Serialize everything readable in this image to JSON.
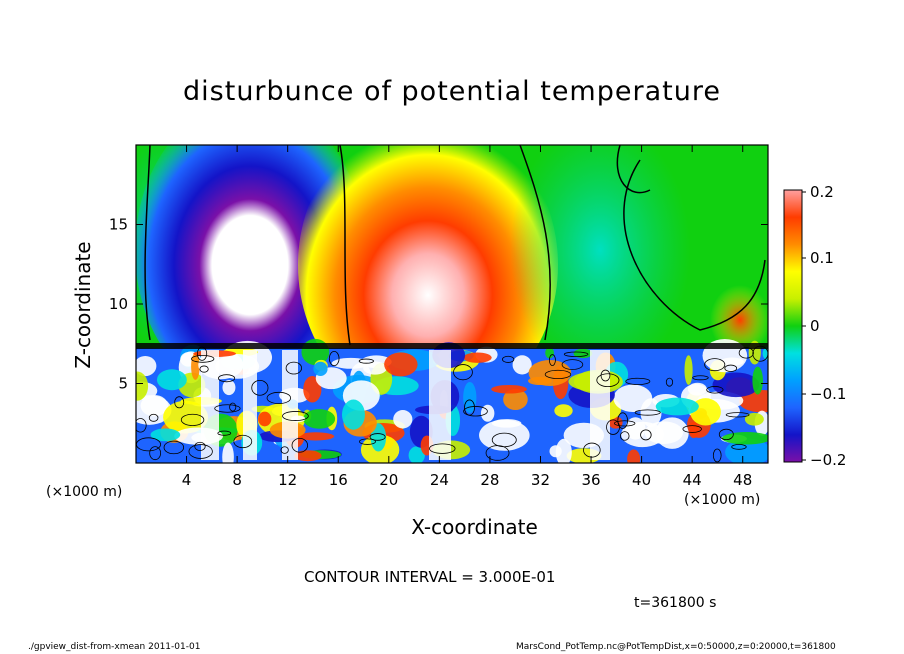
{
  "chart_data": {
    "type": "heatmap",
    "title": "disturbunce of potential temperature",
    "xlabel": "X-coordinate",
    "ylabel": "Z-coordinate",
    "x_unit_label": "(×1000 m)",
    "xlim": [
      0,
      50
    ],
    "ylim": [
      0,
      20
    ],
    "x_ticks": [
      "4",
      "8",
      "12",
      "16",
      "20",
      "24",
      "28",
      "32",
      "36",
      "40",
      "44",
      "48"
    ],
    "y_ticks": [
      "5",
      "10",
      "15"
    ],
    "colorbar": {
      "range": [
        -0.2,
        0.2
      ],
      "tick_labels": [
        "0.2",
        "0.1",
        "0",
        "−0.1",
        "−0.2"
      ],
      "tick_values": [
        0.2,
        0.1,
        0,
        -0.1,
        -0.2
      ]
    },
    "contour_interval_text": "CONTOUR INTERVAL = 3.000E-01",
    "time_text": "t=361800 s",
    "regions": [
      {
        "name": "negative plume",
        "x": 9,
        "z": 14,
        "value": -0.2
      },
      {
        "name": "positive plume",
        "x": 23,
        "z": 13,
        "value": 0.2
      },
      {
        "name": "weak negative",
        "x": 38,
        "z": 11,
        "value": -0.07
      },
      {
        "name": "turbulent layer",
        "z_range": [
          0,
          7.5
        ],
        "value_range": [
          -0.2,
          0.2
        ]
      }
    ]
  },
  "footer": {
    "left": "./gpview_dist-from-xmean  2011-01-01",
    "right": "MarsCond_PotTemp.nc@PotTempDist,x=0:50000,z=0:20000,t=361800"
  },
  "colors": {
    "scale": [
      "#7a10a8",
      "#1414c8",
      "#1e64ff",
      "#00a0ff",
      "#00e0e0",
      "#00d080",
      "#10d010",
      "#70e000",
      "#c8f000",
      "#ffff00",
      "#ffc800",
      "#ff8c00",
      "#ff3c00",
      "#ff6060",
      "#ffa0a0"
    ]
  }
}
